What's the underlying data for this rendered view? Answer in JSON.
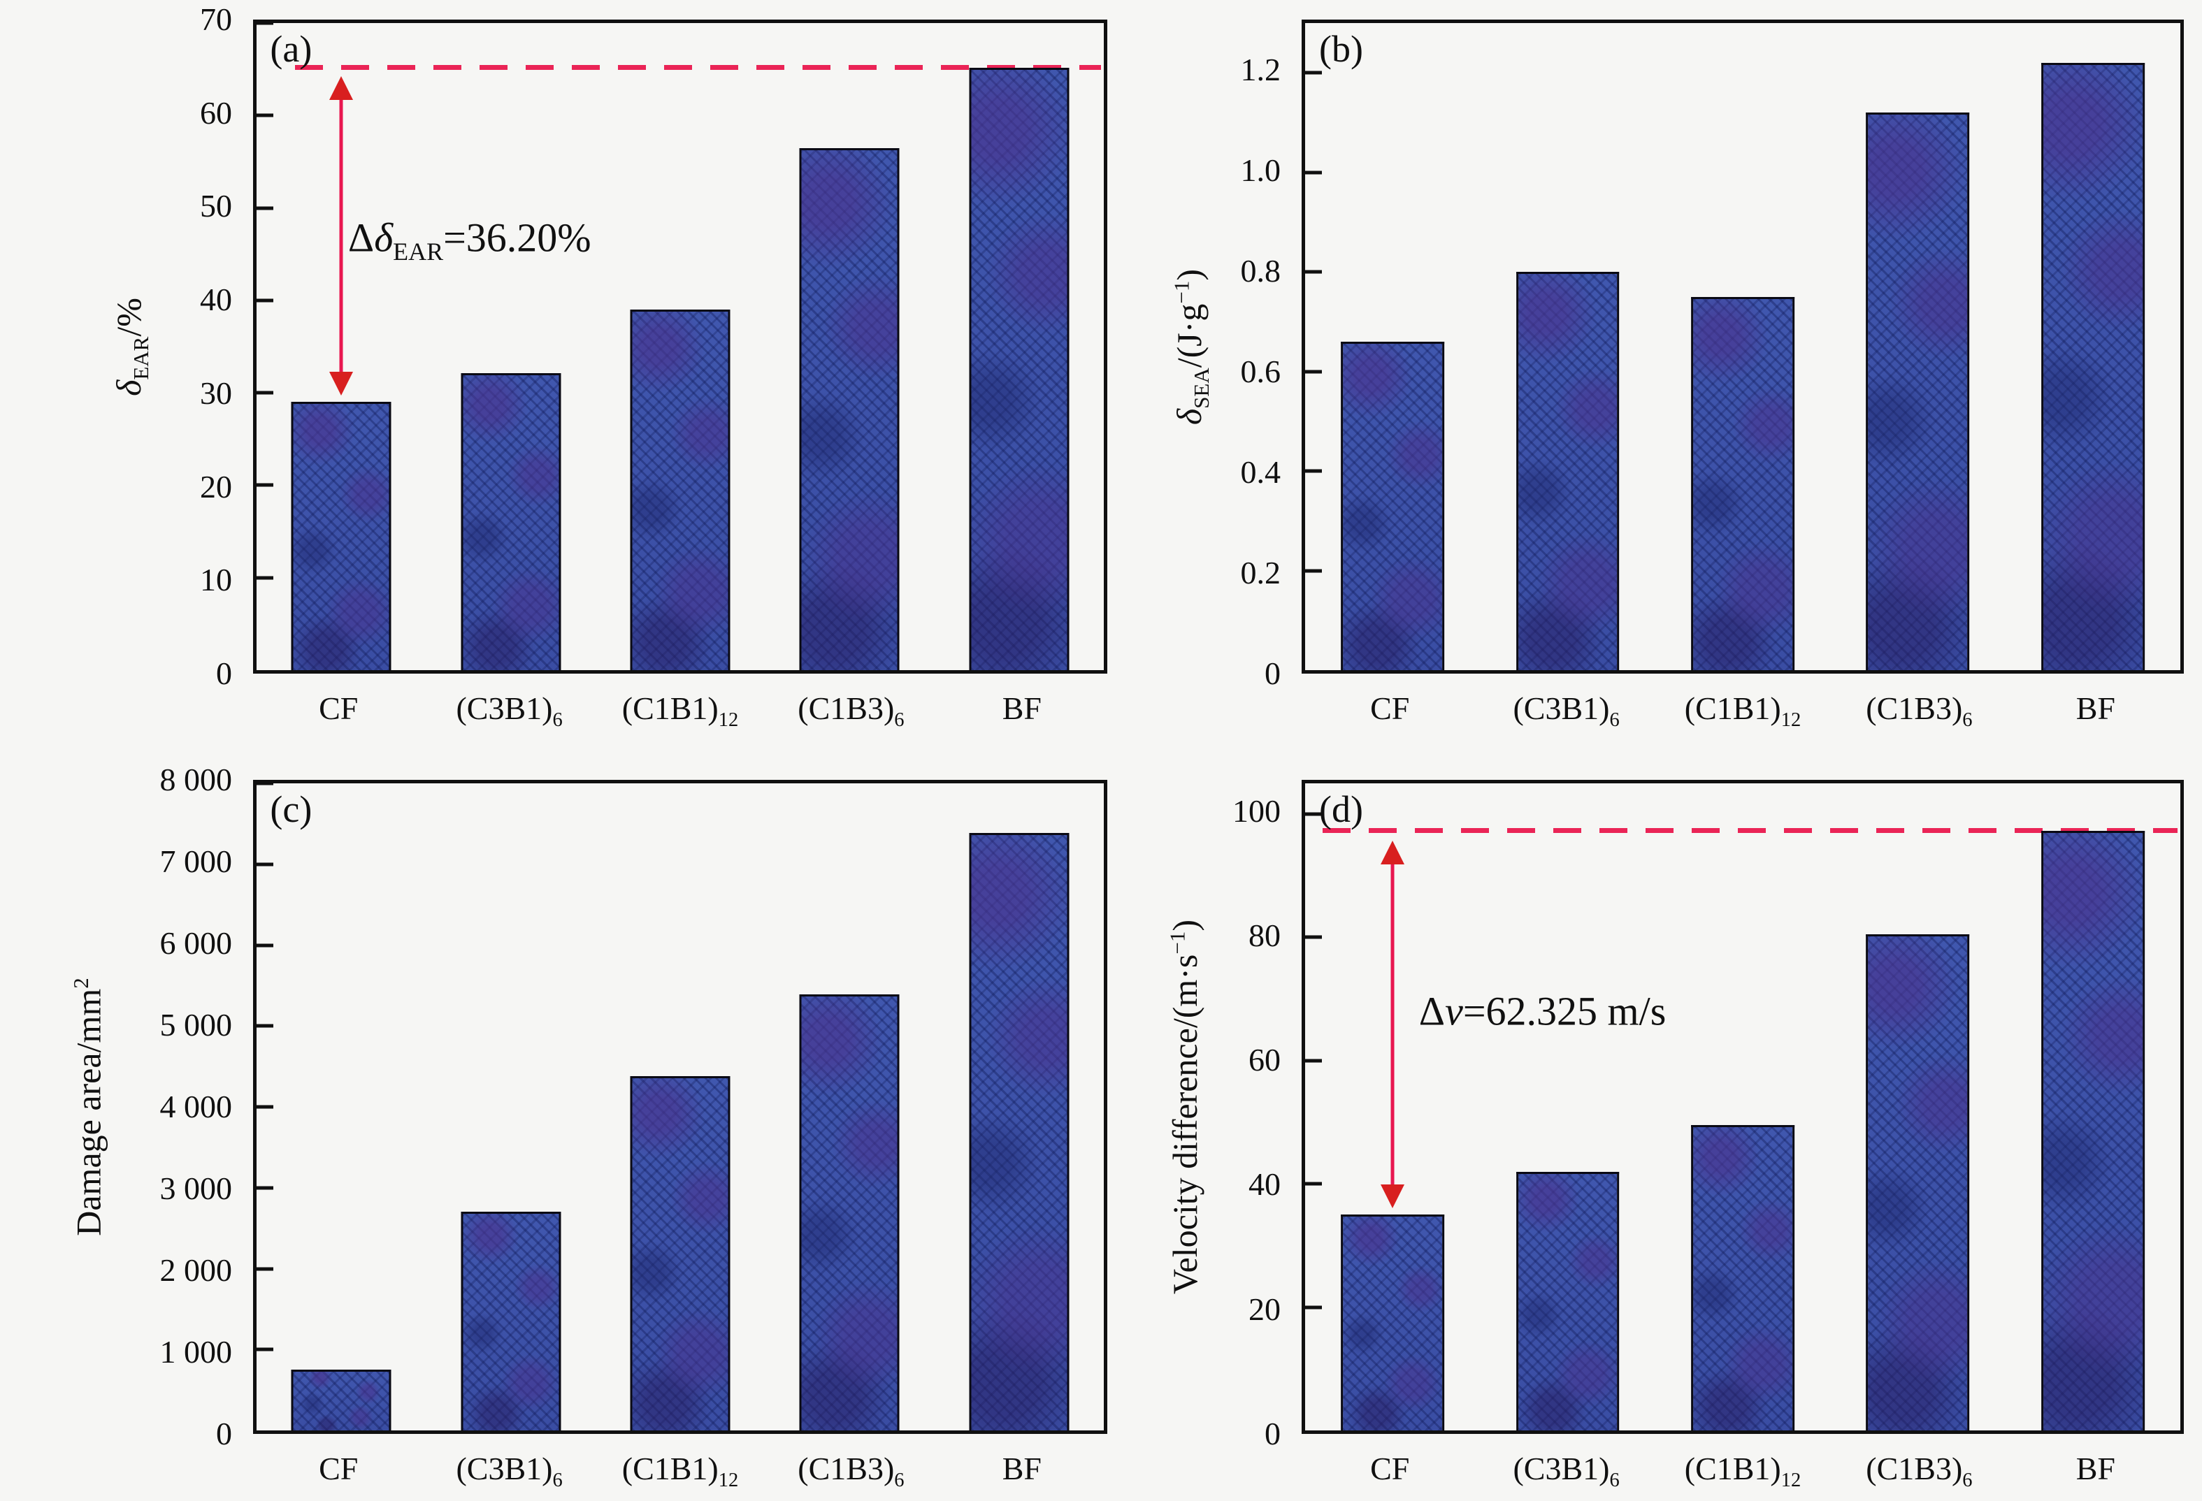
{
  "figure": {
    "background": "#f6f6f4",
    "axis_color": "#101010",
    "bar_fill": "#3a4da3",
    "bar_fill_light": "#4560b2",
    "bar_hatch": "#1d2a6b",
    "bar_patch_purple": "#4a338f",
    "bar_border": "#0a0a14",
    "dashed_line_color": "#ea2456",
    "arrow_shaft_color": "#e8174f",
    "arrow_head_color": "#d81f1f"
  },
  "chart_data": [
    {
      "id": "a",
      "type": "bar",
      "panel_label": "(a)",
      "ylabel_segments": [
        {
          "t": "δ",
          "i": true
        },
        {
          "t": "EAR",
          "sub": true
        },
        {
          "t": "/%"
        }
      ],
      "ymin": 0,
      "ymax": 70,
      "yticks": [
        {
          "v": 0,
          "label": "0"
        },
        {
          "v": 10,
          "label": "10"
        },
        {
          "v": 20,
          "label": "20"
        },
        {
          "v": 30,
          "label": "30"
        },
        {
          "v": 40,
          "label": "40"
        },
        {
          "v": 50,
          "label": "50"
        },
        {
          "v": 60,
          "label": "60"
        },
        {
          "v": 70,
          "label": "70"
        }
      ],
      "categories": [
        {
          "plain": "CF",
          "segments": [
            {
              "t": "CF"
            }
          ]
        },
        {
          "plain": "(C3B1)6",
          "segments": [
            {
              "t": "(C3B1)"
            },
            {
              "t": "6",
              "sub": true
            }
          ]
        },
        {
          "plain": "(C1B1)12",
          "segments": [
            {
              "t": "(C1B1)"
            },
            {
              "t": "12",
              "sub": true
            }
          ]
        },
        {
          "plain": "(C1B3)6",
          "segments": [
            {
              "t": "(C1B3)"
            },
            {
              "t": "6",
              "sub": true
            }
          ]
        },
        {
          "plain": "BF",
          "segments": [
            {
              "t": "BF"
            }
          ]
        }
      ],
      "values": [
        29.0,
        32.1,
        39.0,
        56.5,
        65.2
      ],
      "dashed_line": {
        "value": 65.2,
        "left_pct": 4.5,
        "right_pct": 0.3
      },
      "arrow": {
        "slot": 0,
        "from": 29.8,
        "to": 64.2
      },
      "annotation": {
        "segments": [
          {
            "t": "Δ"
          },
          {
            "t": "δ",
            "i": true
          },
          {
            "t": "EAR",
            "sub": true
          },
          {
            "t": "=36.20%"
          }
        ],
        "left_pct": 10.8,
        "center_value": 46.5
      }
    },
    {
      "id": "b",
      "type": "bar",
      "panel_label": "(b)",
      "ylabel_segments": [
        {
          "t": "δ",
          "i": true
        },
        {
          "t": "SEA",
          "sub": true
        },
        {
          "t": "/(J·g"
        },
        {
          "t": "−1",
          "sup": true
        },
        {
          "t": ")"
        }
      ],
      "ymin": 0,
      "ymax": 1.3,
      "yticks": [
        {
          "v": 0,
          "label": "0"
        },
        {
          "v": 0.2,
          "label": "0.2"
        },
        {
          "v": 0.4,
          "label": "0.4"
        },
        {
          "v": 0.6,
          "label": "0.6"
        },
        {
          "v": 0.8,
          "label": "0.8"
        },
        {
          "v": 1.0,
          "label": "1.0"
        },
        {
          "v": 1.2,
          "label": "1.2"
        }
      ],
      "categories": [
        {
          "plain": "CF",
          "segments": [
            {
              "t": "CF"
            }
          ]
        },
        {
          "plain": "(C3B1)6",
          "segments": [
            {
              "t": "(C3B1)"
            },
            {
              "t": "6",
              "sub": true
            }
          ]
        },
        {
          "plain": "(C1B1)12",
          "segments": [
            {
              "t": "(C1B1)"
            },
            {
              "t": "12",
              "sub": true
            }
          ]
        },
        {
          "plain": "(C1B3)6",
          "segments": [
            {
              "t": "(C1B3)"
            },
            {
              "t": "6",
              "sub": true
            }
          ]
        },
        {
          "plain": "BF",
          "segments": [
            {
              "t": "BF"
            }
          ]
        }
      ],
      "values": [
        0.66,
        0.8,
        0.75,
        1.12,
        1.22
      ],
      "dashed_line": null,
      "arrow": null,
      "annotation": null
    },
    {
      "id": "c",
      "type": "bar",
      "panel_label": "(c)",
      "ylabel_segments": [
        {
          "t": "Damage area/mm"
        },
        {
          "t": "2",
          "sup": true
        }
      ],
      "ymin": 0,
      "ymax": 8000,
      "yticks": [
        {
          "v": 0,
          "label": "0"
        },
        {
          "v": 1000,
          "label": "1 000"
        },
        {
          "v": 2000,
          "label": "2 000"
        },
        {
          "v": 3000,
          "label": "3 000"
        },
        {
          "v": 4000,
          "label": "4 000"
        },
        {
          "v": 5000,
          "label": "5 000"
        },
        {
          "v": 6000,
          "label": "6 000"
        },
        {
          "v": 7000,
          "label": "7 000"
        },
        {
          "v": 8000,
          "label": "8 000"
        }
      ],
      "categories": [
        {
          "plain": "CF",
          "segments": [
            {
              "t": "CF"
            }
          ]
        },
        {
          "plain": "(C3B1)6",
          "segments": [
            {
              "t": "(C3B1)"
            },
            {
              "t": "6",
              "sub": true
            }
          ]
        },
        {
          "plain": "(C1B1)12",
          "segments": [
            {
              "t": "(C1B1)"
            },
            {
              "t": "12",
              "sub": true
            }
          ]
        },
        {
          "plain": "(C1B3)6",
          "segments": [
            {
              "t": "(C1B3)"
            },
            {
              "t": "6",
              "sub": true
            }
          ]
        },
        {
          "plain": "BF",
          "segments": [
            {
              "t": "BF"
            }
          ]
        }
      ],
      "values": [
        750,
        2700,
        4380,
        5390,
        7390
      ],
      "dashed_line": null,
      "arrow": null,
      "annotation": null
    },
    {
      "id": "d",
      "type": "bar",
      "panel_label": "(d)",
      "ylabel_segments": [
        {
          "t": "Velocity difference/(m·s"
        },
        {
          "t": "−1",
          "sup": true
        },
        {
          "t": ")"
        }
      ],
      "ymin": 0,
      "ymax": 105,
      "yticks": [
        {
          "v": 0,
          "label": "0"
        },
        {
          "v": 20,
          "label": "20"
        },
        {
          "v": 40,
          "label": "40"
        },
        {
          "v": 60,
          "label": "60"
        },
        {
          "v": 80,
          "label": "80"
        },
        {
          "v": 100,
          "label": "100"
        }
      ],
      "categories": [
        {
          "plain": "CF",
          "segments": [
            {
              "t": "CF"
            }
          ]
        },
        {
          "plain": "(C3B1)6",
          "segments": [
            {
              "t": "(C3B1)"
            },
            {
              "t": "6",
              "sub": true
            }
          ]
        },
        {
          "plain": "(C1B1)12",
          "segments": [
            {
              "t": "(C1B1)"
            },
            {
              "t": "12",
              "sub": true
            }
          ]
        },
        {
          "plain": "(C1B3)6",
          "segments": [
            {
              "t": "(C1B3)"
            },
            {
              "t": "6",
              "sub": true
            }
          ]
        },
        {
          "plain": "BF",
          "segments": [
            {
              "t": "BF"
            }
          ]
        }
      ],
      "values": [
        35.0,
        42.0,
        49.5,
        80.5,
        97.3
      ],
      "dashed_line": {
        "value": 97.325,
        "left_pct": 2.0,
        "right_pct": 0.3
      },
      "arrow": {
        "slot": 0,
        "from": 36.2,
        "to": 95.6
      },
      "annotation": {
        "segments": [
          {
            "t": "Δ"
          },
          {
            "t": "v",
            "i": true
          },
          {
            "t": "=62.325 m/s"
          }
        ],
        "left_pct": 13.0,
        "center_value": 68
      }
    }
  ]
}
